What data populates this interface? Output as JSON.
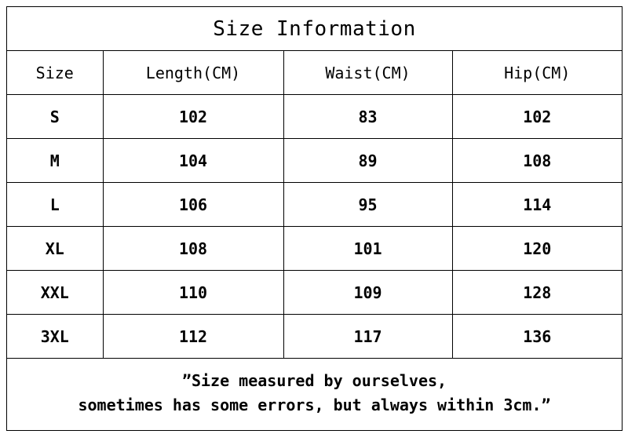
{
  "title": "Size Information",
  "table": {
    "headers": [
      "Size",
      "Length(CM)",
      "Waist(CM)",
      "Hip(CM)"
    ],
    "rows": [
      [
        "S",
        "102",
        "83",
        "102"
      ],
      [
        "M",
        "104",
        "89",
        "108"
      ],
      [
        "L",
        "106",
        "95",
        "114"
      ],
      [
        "XL",
        "108",
        "101",
        "120"
      ],
      [
        "XXL",
        "110",
        "109",
        "128"
      ],
      [
        "3XL",
        "112",
        "117",
        "136"
      ]
    ]
  },
  "note": {
    "line1": "”Size measured by ourselves,",
    "line2": "sometimes has some errors, but always within 3cm.”"
  }
}
